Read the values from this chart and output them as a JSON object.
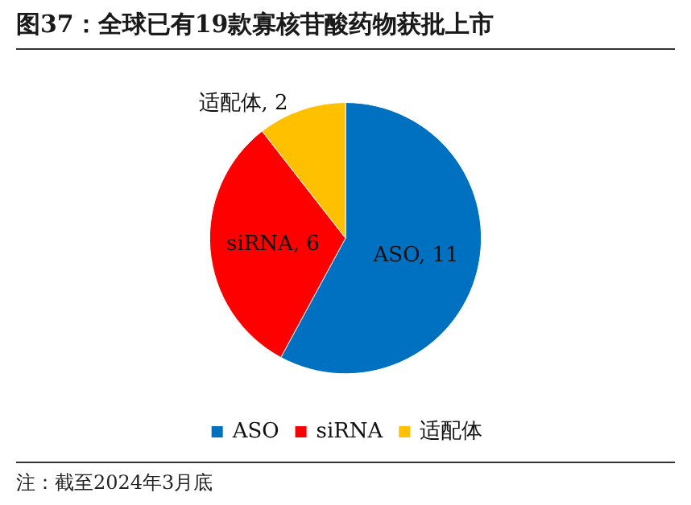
{
  "chart_data": {
    "type": "pie",
    "title": "图37：全球已有19款寡核苷酸药物获批上市",
    "categories": [
      "ASO",
      "siRNA",
      "适配体"
    ],
    "values": [
      11,
      6,
      2
    ],
    "colors": [
      "#0070c0",
      "#ff0000",
      "#ffc000"
    ],
    "value_labels": [
      "ASO, 11",
      "siRNA, 6",
      "适配体, 2"
    ],
    "legend": "bottom",
    "annotations": [
      "注：截至2024年3月底"
    ]
  }
}
